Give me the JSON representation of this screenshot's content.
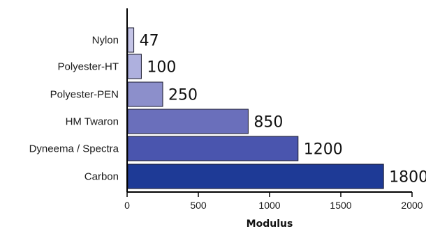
{
  "chart_data": {
    "type": "bar",
    "orientation": "horizontal",
    "categories": [
      "Nylon",
      "Polyester-HT",
      "Polyester-PEN",
      "HM Twaron",
      "Dyneema / Spectra",
      "Carbon"
    ],
    "values": [
      47,
      100,
      250,
      850,
      1200,
      1800
    ],
    "value_labels": [
      "47",
      "100",
      "250",
      "850",
      "1200",
      "1800"
    ],
    "title": "",
    "xlabel": "Modulus",
    "ylabel": "",
    "xlim": [
      0,
      2000
    ],
    "xticks": [
      0,
      500,
      1000,
      1500,
      2000
    ],
    "xtick_labels": [
      "0",
      "500",
      "1000",
      "1500",
      "2000"
    ],
    "grid": false,
    "legend": "none",
    "colors": [
      "#c4c4e6",
      "#aeb0de",
      "#8c8fcb",
      "#6a6fbb",
      "#4a55ae",
      "#1e3a96"
    ]
  }
}
